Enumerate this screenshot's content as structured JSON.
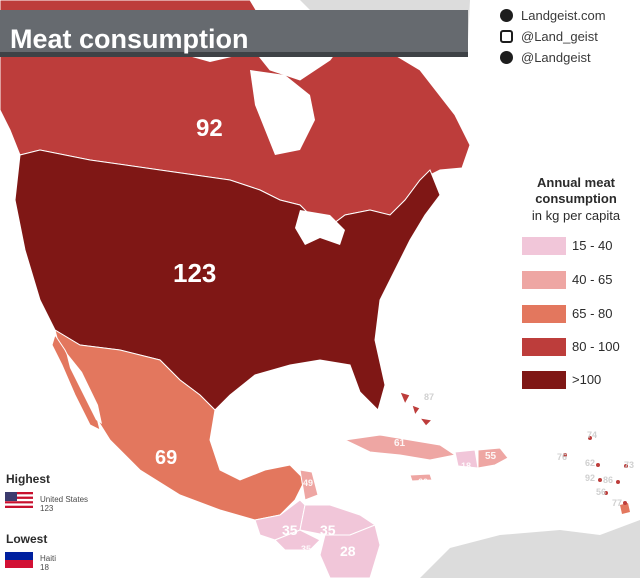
{
  "title": "Meat consumption",
  "sources": [
    {
      "icon": "globe-icon",
      "text": "Landgeist.com"
    },
    {
      "icon": "instagram-icon",
      "text": "@Land_geist"
    },
    {
      "icon": "twitter-icon",
      "text": "@Landgeist"
    }
  ],
  "legend": {
    "title": "Annual meat consumption",
    "subtitle": "in kg per capita",
    "bins": [
      {
        "label": "15  -  40",
        "color": "#f1c6d9"
      },
      {
        "label": "40  -  65",
        "color": "#eea6a3"
      },
      {
        "label": "65  -  80",
        "color": "#e3775e"
      },
      {
        "label": "80  -  100",
        "color": "#bd3d3b"
      },
      {
        "label": ">100",
        "color": "#7f1715"
      }
    ]
  },
  "countries": [
    {
      "name": "Canada",
      "value": "92",
      "color": "#bd3d3b"
    },
    {
      "name": "United States",
      "value": "123",
      "color": "#7f1715"
    },
    {
      "name": "Mexico",
      "value": "69",
      "color": "#e3775e"
    },
    {
      "name": "Guatemala",
      "value": "35",
      "color": "#f1c6d9"
    },
    {
      "name": "Honduras",
      "value": "35",
      "color": "#f1c6d9"
    },
    {
      "name": "Nicaragua",
      "value": "28",
      "color": "#f1c6d9"
    },
    {
      "name": "Belize",
      "value": "49",
      "color": "#eea6a3"
    },
    {
      "name": "El Salvador",
      "value": "35",
      "color": "#f1c6d9"
    },
    {
      "name": "Cuba",
      "value": "61",
      "color": "#eea6a3"
    },
    {
      "name": "Dominican Republic",
      "value": "55",
      "color": "#eea6a3"
    },
    {
      "name": "Haiti",
      "value": "18",
      "color": "#f1c6d9"
    },
    {
      "name": "Jamaica",
      "value": "60",
      "color": "#eea6a3"
    },
    {
      "name": "Bahamas",
      "value": "87",
      "color": "#bd3d3b"
    }
  ],
  "small_islands": [
    "74",
    "76",
    "62",
    "73",
    "92",
    "86",
    "56",
    "77"
  ],
  "highest": {
    "heading": "Highest",
    "country": "United States",
    "value": "123"
  },
  "lowest": {
    "heading": "Lowest",
    "country": "Haiti",
    "value": "18"
  },
  "colors": {
    "land_other": "#dedede",
    "water": "#ffffff",
    "border": "#ffffff"
  }
}
